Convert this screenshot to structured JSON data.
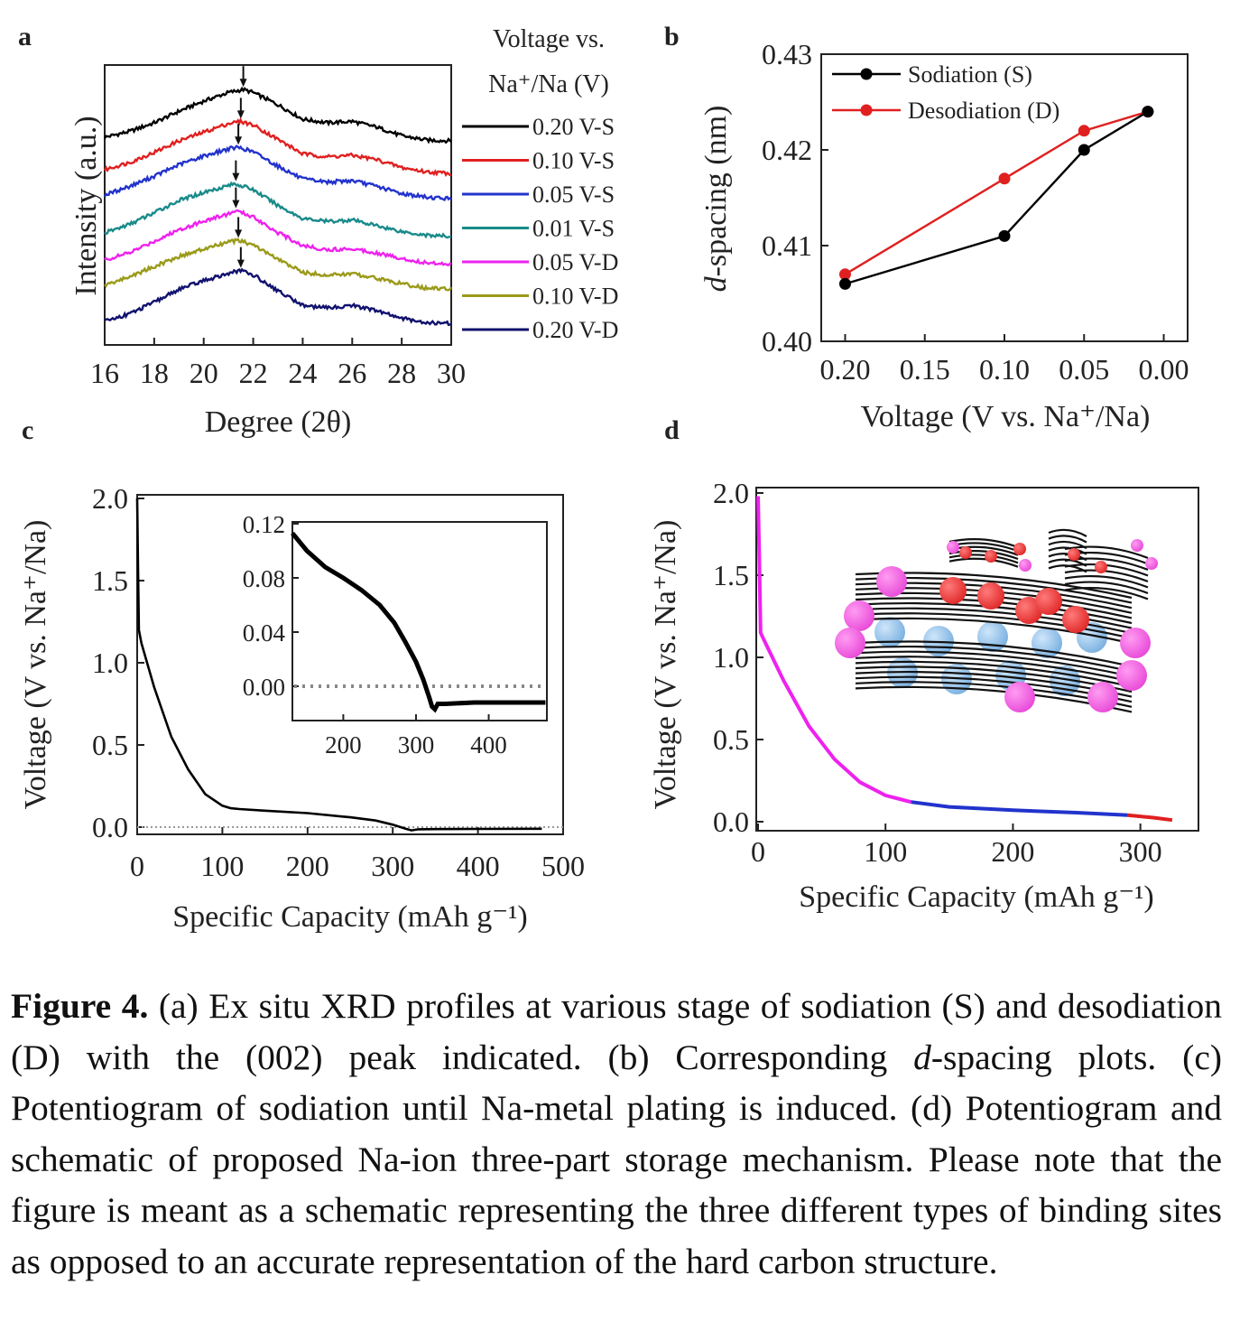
{
  "panels": {
    "a": {
      "label": "a",
      "ylabel": "Intensity (a.u.)",
      "xlabel": "Degree (2θ)",
      "legend_title_1": "Voltage vs.",
      "legend_title_2": "Na⁺/Na (V)"
    },
    "b": {
      "label": "b",
      "ylabel_italic": "d",
      "ylabel_rest": "-spacing (nm)",
      "xlabel": "Voltage (V vs. Na⁺/Na)"
    },
    "c": {
      "label": "c",
      "ylabel": "Voltage (V vs. Na⁺/Na)",
      "xlabel": "Specific Capacity (mAh g⁻¹)"
    },
    "d": {
      "label": "d",
      "ylabel": "Voltage (V vs. Na⁺/Na)",
      "xlabel": "Specific Capacity (mAh g⁻¹)"
    }
  },
  "chart_data": [
    {
      "panel": "a",
      "type": "line",
      "xlim": [
        16,
        30
      ],
      "xticks": [
        "16",
        "18",
        "20",
        "22",
        "24",
        "26",
        "28",
        "30"
      ],
      "peak_x": 21.5,
      "series": [
        {
          "name": "0.20 V-S",
          "color": "#000000",
          "peak_x": 21.6,
          "x": [
            16,
            17,
            18,
            19,
            20,
            21,
            21.6,
            22,
            23,
            24,
            25,
            26,
            27,
            28,
            29,
            30
          ],
          "y": [
            0.1,
            0.18,
            0.3,
            0.46,
            0.6,
            0.72,
            0.76,
            0.72,
            0.55,
            0.35,
            0.3,
            0.32,
            0.24,
            0.12,
            0.06,
            0.05
          ]
        },
        {
          "name": "0.10 V-S",
          "color": "#e02020",
          "peak_x": 21.5,
          "x": [
            16,
            17,
            18,
            19,
            20,
            21,
            21.5,
            22,
            23,
            24,
            25,
            26,
            27,
            28,
            29,
            30
          ],
          "y": [
            0.1,
            0.2,
            0.34,
            0.5,
            0.62,
            0.74,
            0.77,
            0.72,
            0.52,
            0.32,
            0.28,
            0.3,
            0.24,
            0.13,
            0.07,
            0.05
          ]
        },
        {
          "name": "0.05 V-S",
          "color": "#2233cc",
          "peak_x": 21.4,
          "x": [
            16,
            17,
            18,
            19,
            20,
            21,
            21.4,
            22,
            23,
            24,
            25,
            26,
            27,
            28,
            29,
            30
          ],
          "y": [
            0.1,
            0.22,
            0.36,
            0.52,
            0.64,
            0.74,
            0.76,
            0.7,
            0.5,
            0.32,
            0.28,
            0.3,
            0.22,
            0.12,
            0.07,
            0.05
          ]
        },
        {
          "name": "0.01 V-S",
          "color": "#1a8a8a",
          "peak_x": 21.3,
          "x": [
            16,
            17,
            18,
            19,
            20,
            21,
            21.3,
            22,
            23,
            24,
            25,
            26,
            27,
            28,
            29,
            30
          ],
          "y": [
            0.1,
            0.22,
            0.38,
            0.55,
            0.66,
            0.76,
            0.78,
            0.7,
            0.48,
            0.3,
            0.26,
            0.28,
            0.2,
            0.12,
            0.07,
            0.05
          ]
        },
        {
          "name": "0.05 V-D",
          "color": "#ee22ee",
          "peak_x": 21.3,
          "x": [
            16,
            17,
            18,
            19,
            20,
            21,
            21.3,
            22,
            23,
            24,
            25,
            26,
            27,
            28,
            29,
            30
          ],
          "y": [
            0.1,
            0.2,
            0.36,
            0.52,
            0.64,
            0.74,
            0.78,
            0.7,
            0.48,
            0.3,
            0.24,
            0.26,
            0.2,
            0.12,
            0.06,
            0.05
          ]
        },
        {
          "name": "0.10 V-D",
          "color": "#9a9a1a",
          "peak_x": 21.4,
          "x": [
            16,
            17,
            18,
            19,
            20,
            21,
            21.4,
            22,
            23,
            24,
            25,
            26,
            27,
            28,
            29,
            30
          ],
          "y": [
            0.1,
            0.22,
            0.36,
            0.5,
            0.6,
            0.7,
            0.72,
            0.66,
            0.46,
            0.28,
            0.24,
            0.26,
            0.2,
            0.12,
            0.06,
            0.05
          ]
        },
        {
          "name": "0.20 V-D",
          "color": "#11116e",
          "peak_x": 21.5,
          "x": [
            16,
            17,
            18,
            19,
            20,
            21,
            21.5,
            22,
            23,
            24,
            25,
            26,
            27,
            28,
            29,
            30
          ],
          "y": [
            0.08,
            0.18,
            0.34,
            0.52,
            0.64,
            0.74,
            0.78,
            0.72,
            0.5,
            0.3,
            0.26,
            0.3,
            0.22,
            0.12,
            0.06,
            0.05
          ]
        }
      ]
    },
    {
      "panel": "b",
      "type": "line",
      "xlim": [
        0.2,
        0.0
      ],
      "ylim": [
        0.4,
        0.43
      ],
      "xticks": [
        "0.20",
        "0.15",
        "0.10",
        "0.05",
        "0.00"
      ],
      "yticks": [
        "0.40",
        "0.41",
        "0.42",
        "0.43"
      ],
      "series": [
        {
          "name": "Sodiation (S)",
          "color": "#000000",
          "x": [
            0.2,
            0.1,
            0.05,
            0.01
          ],
          "y": [
            0.406,
            0.411,
            0.42,
            0.424
          ]
        },
        {
          "name": "Desodiation (D)",
          "color": "#e02020",
          "x": [
            0.2,
            0.1,
            0.05,
            0.01
          ],
          "y": [
            0.407,
            0.417,
            0.422,
            0.424
          ]
        }
      ],
      "legend_position": "top-left"
    },
    {
      "panel": "c",
      "type": "line",
      "xlim": [
        0,
        500
      ],
      "ylim": [
        -0.05,
        2.05
      ],
      "xticks": [
        "0",
        "100",
        "200",
        "300",
        "400",
        "500"
      ],
      "yticks": [
        "0.0",
        "0.5",
        "1.0",
        "1.5",
        "2.0"
      ],
      "series": [
        {
          "color": "#000000",
          "x": [
            0,
            1,
            2,
            5,
            10,
            20,
            40,
            60,
            80,
            100,
            110,
            120,
            150,
            200,
            250,
            280,
            300,
            315,
            322,
            330,
            350,
            400,
            475
          ],
          "y": [
            2.0,
            1.6,
            1.2,
            1.12,
            1.03,
            0.85,
            0.55,
            0.35,
            0.2,
            0.13,
            0.115,
            0.11,
            0.1,
            0.085,
            0.06,
            0.04,
            0.015,
            -0.01,
            -0.02,
            -0.013,
            -0.012,
            -0.011,
            -0.01
          ]
        }
      ],
      "inset": {
        "xlim": [
          130,
          480
        ],
        "ylim": [
          -0.02,
          0.12
        ],
        "xticks": [
          "200",
          "300",
          "400"
        ],
        "yticks": [
          "0.00",
          "0.04",
          "0.08",
          "0.12"
        ],
        "series": [
          {
            "color": "#000000",
            "x": [
              130,
              150,
              175,
              200,
              225,
              250,
              270,
              285,
              300,
              310,
              318,
              322,
              326,
              330,
              340,
              380,
              430,
              478
            ],
            "y": [
              0.113,
              0.1,
              0.088,
              0.08,
              0.071,
              0.06,
              0.047,
              0.033,
              0.018,
              0.005,
              -0.008,
              -0.015,
              -0.017,
              -0.013,
              -0.013,
              -0.012,
              -0.012,
              -0.012
            ]
          }
        ]
      }
    },
    {
      "panel": "d",
      "type": "line",
      "xlim": [
        0,
        330
      ],
      "ylim": [
        -0.03,
        2.05
      ],
      "xticks": [
        "0",
        "100",
        "200",
        "300"
      ],
      "yticks": [
        "0.0",
        "0.5",
        "1.0",
        "1.5",
        "2.0"
      ],
      "series": [
        {
          "color": "#ee22ee",
          "x": [
            0,
            1,
            2,
            5,
            10,
            20,
            40,
            60,
            80,
            100,
            110,
            120
          ],
          "y": [
            1.98,
            1.6,
            1.15,
            1.1,
            1.02,
            0.86,
            0.58,
            0.38,
            0.24,
            0.16,
            0.14,
            0.12
          ]
        },
        {
          "color": "#2233cc",
          "x": [
            120,
            150,
            200,
            250,
            290
          ],
          "y": [
            0.12,
            0.09,
            0.07,
            0.055,
            0.04
          ]
        },
        {
          "color": "#e02020",
          "x": [
            290,
            310,
            325
          ],
          "y": [
            0.04,
            0.025,
            0.01
          ]
        }
      ]
    }
  ],
  "caption": {
    "fig_label": "Figure 4.",
    "part1": " (a) Ex situ XRD profiles at various stage of sodiation (S) and desodiation (D) with the (002) peak indicated. (b) Corresponding ",
    "italic_d": "d",
    "part2": "-spacing plots. (c) Potentiogram of sodiation until Na-metal plating is induced. (d) Potentiogram and schematic of proposed Na-ion three-part storage mechanism. Please note that the figure is meant as a schematic representing the three different types of binding sites as opposed to an accurate representation of the hard carbon structure."
  },
  "schematic": {
    "sphere_colors": {
      "edge": "#e84ad8",
      "plating": "#e02828",
      "interlayer": "#7ab0e0"
    }
  }
}
